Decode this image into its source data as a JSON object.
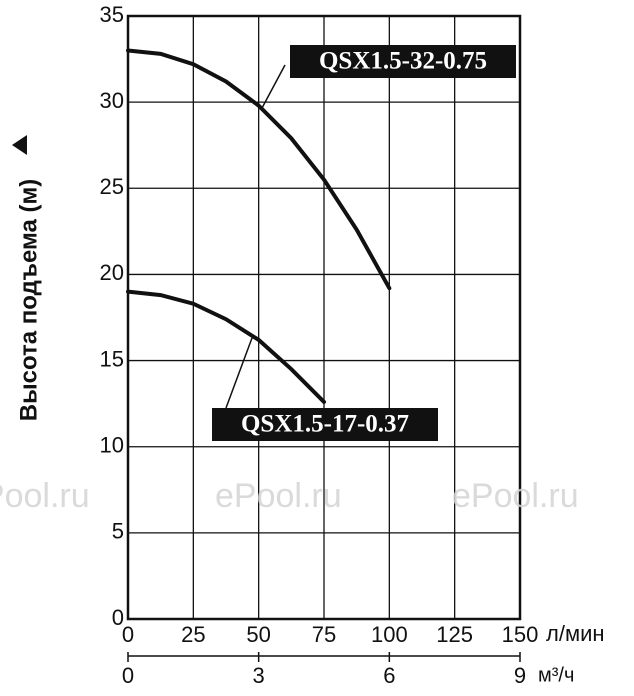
{
  "chart_data": {
    "type": "line",
    "y_label": "Высота подъема (м)",
    "x_unit": "л/мин",
    "x2_unit": "м³/ч",
    "xlim": [
      0,
      150
    ],
    "xticks": [
      0,
      25,
      50,
      75,
      100,
      125,
      150
    ],
    "x2lim": [
      0,
      9
    ],
    "x2ticks": [
      0,
      3,
      6,
      9
    ],
    "ylim": [
      0,
      35
    ],
    "yticks": [
      0,
      5,
      10,
      15,
      20,
      25,
      30,
      35
    ],
    "grid": true,
    "watermarks": [
      "ePool.ru",
      "ePool.ru",
      "ePool.ru"
    ],
    "series": [
      {
        "name": "QSX1.5-32-0.75",
        "color": "#111111",
        "x": [
          0,
          12.5,
          25,
          37.5,
          50,
          62.5,
          75,
          87.5,
          100
        ],
        "values": [
          33,
          32.8,
          32.2,
          31.2,
          29.8,
          27.9,
          25.5,
          22.6,
          19.2
        ]
      },
      {
        "name": "QSX1.5-17-0.37",
        "color": "#111111",
        "x": [
          0,
          12.5,
          25,
          37.5,
          50,
          62.5,
          75
        ],
        "values": [
          19,
          18.8,
          18.3,
          17.4,
          16.2,
          14.5,
          12.6
        ]
      }
    ]
  }
}
